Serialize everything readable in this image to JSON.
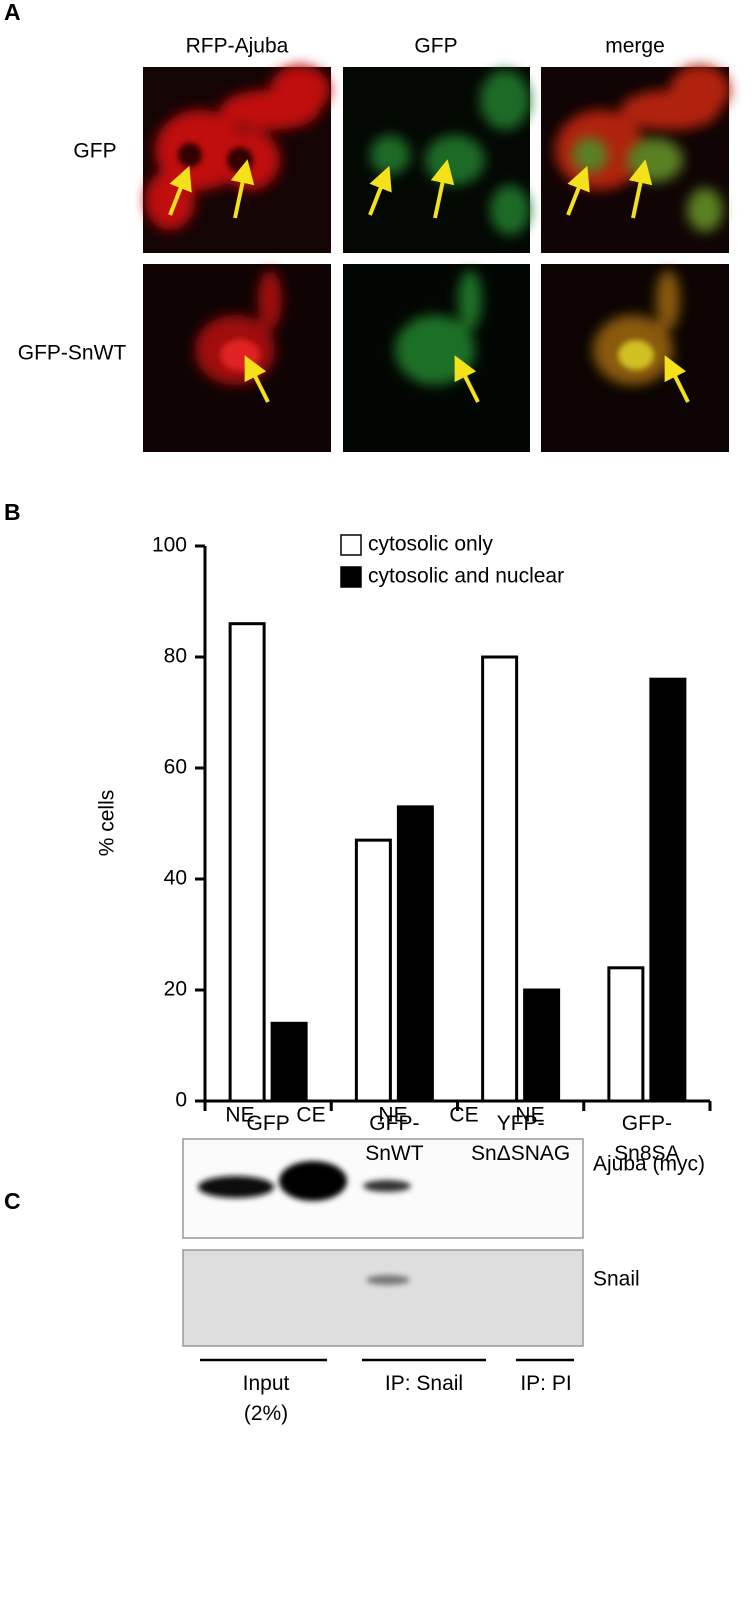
{
  "panel_a": {
    "letter": "A",
    "columns": [
      "RFP-Ajuba",
      "GFP",
      "merge"
    ],
    "rows": [
      "GFP",
      "GFP-SnWT"
    ]
  },
  "chart_data": {
    "type": "bar",
    "letter": "B",
    "y_label": "% cells",
    "categories": [
      "GFP",
      "GFP-\nSnWT",
      "YFP-\nSnΔSNAG",
      "GFP-\nSn8SA"
    ],
    "series": [
      {
        "name": "cytosolic only",
        "color": "#ffffff",
        "values": [
          86,
          47,
          80,
          24
        ]
      },
      {
        "name": "cytosolic and nuclear",
        "color": "#000000",
        "values": [
          14,
          53,
          20,
          76
        ]
      }
    ],
    "ylim": [
      0,
      100
    ],
    "yticks": [
      0,
      20,
      40,
      60,
      80,
      100
    ],
    "grid": false,
    "legend": "top"
  },
  "panel_c": {
    "letter": "C",
    "lanes": [
      "NE",
      "CE",
      "NE",
      "CE",
      "NE"
    ],
    "bands": [
      "Ajuba (myc)",
      "Snail"
    ],
    "groups": [
      "Input\n(2%)",
      "IP: Snail",
      "IP: PI"
    ]
  }
}
